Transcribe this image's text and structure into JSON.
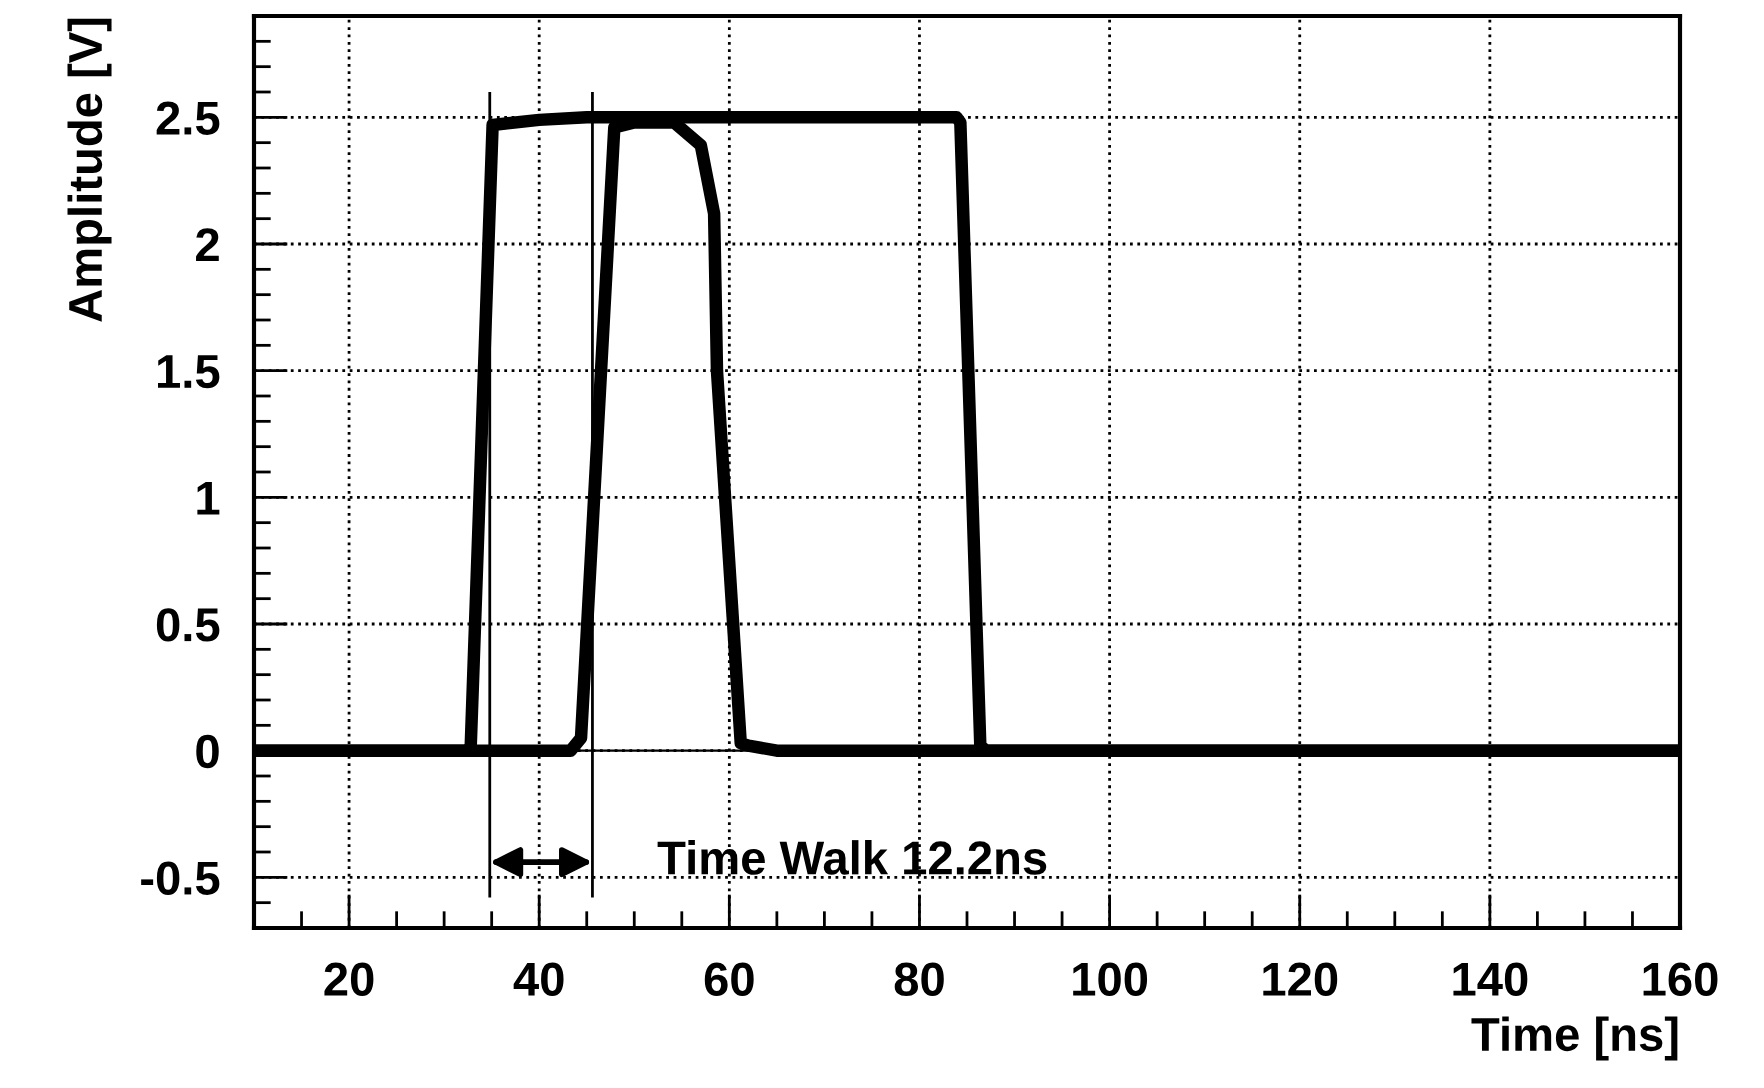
{
  "chart_data": {
    "type": "line",
    "xlabel": "Time [ns]",
    "ylabel": "Amplitude [V]",
    "xlim": [
      10,
      160
    ],
    "ylim": [
      -0.7,
      2.9
    ],
    "xticks": [
      20,
      40,
      60,
      80,
      100,
      120,
      140,
      160
    ],
    "yticks": [
      -0.5,
      0,
      0.5,
      1,
      1.5,
      2,
      2.5
    ],
    "grid": true,
    "marker": "none",
    "line_style": "solid",
    "series": [
      {
        "color": "#000000",
        "x": [
          10,
          32.5,
          32.8,
          35.1,
          40,
          45,
          60,
          83.9,
          84.3,
          86.4,
          87,
          160
        ],
        "values": [
          0,
          0,
          0.02,
          2.47,
          2.49,
          2.5,
          2.5,
          2.5,
          2.48,
          0.02,
          0,
          0
        ]
      },
      {
        "color": "#000000",
        "x": [
          10,
          43.3,
          44.4,
          47.9,
          50,
          54.2,
          57.0,
          58.4,
          58.7,
          61.2,
          62,
          65,
          160
        ],
        "values": [
          0,
          0,
          0.05,
          2.46,
          2.48,
          2.48,
          2.39,
          2.12,
          1.5,
          0.03,
          0.02,
          0,
          0
        ]
      }
    ],
    "ref_lines": [
      {
        "axis": "x",
        "value": 34.8,
        "color": "#000000",
        "line_style": "solid"
      },
      {
        "axis": "x",
        "value": 45.6,
        "color": "#000000",
        "line_style": "solid"
      },
      {
        "axis": "y",
        "value": 0,
        "color": "#000000",
        "line_style": "solid"
      }
    ],
    "annotations": [
      "Time Walk 12.2ns"
    ]
  }
}
